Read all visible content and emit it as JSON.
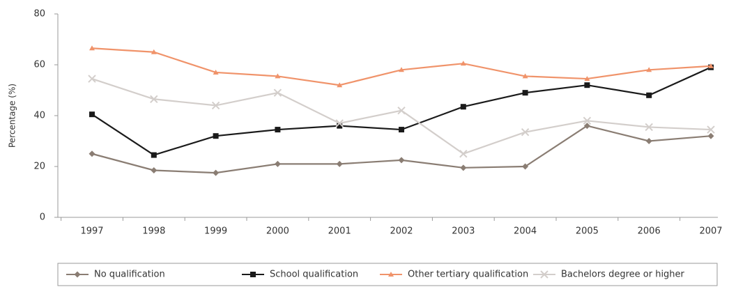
{
  "chart_data": {
    "type": "line",
    "y_label": "Percentage (%)",
    "categories": [
      "1997",
      "1998",
      "1999",
      "2000",
      "2001",
      "2002",
      "2003",
      "2004",
      "2005",
      "2006",
      "2007"
    ],
    "series": [
      {
        "name": "No qualification",
        "color": "#8a7d73",
        "marker": "diamond",
        "values": [
          25,
          18.5,
          17.5,
          21,
          21,
          22.5,
          19.5,
          20,
          36,
          30,
          32
        ]
      },
      {
        "name": "School qualification",
        "color": "#1a1a1a",
        "marker": "square",
        "values": [
          40.5,
          24.5,
          32,
          34.5,
          36,
          34.5,
          43.5,
          49,
          52,
          48,
          59
        ]
      },
      {
        "name": "Other tertiary qualification",
        "color": "#f0936a",
        "marker": "triangle",
        "values": [
          66.5,
          65,
          57,
          55.5,
          52,
          58,
          60.5,
          55.5,
          54.5,
          58,
          59.5
        ]
      },
      {
        "name": "Bachelors degree or higher",
        "color": "#d3cecb",
        "marker": "x",
        "values": [
          54.5,
          46.5,
          44,
          49,
          37,
          42,
          25,
          33.5,
          38,
          35.5,
          34.5
        ]
      }
    ],
    "ylim": [
      0,
      80
    ],
    "yticks": [
      0,
      20,
      40,
      60,
      80
    ],
    "grid": false,
    "legend": "bottom"
  }
}
